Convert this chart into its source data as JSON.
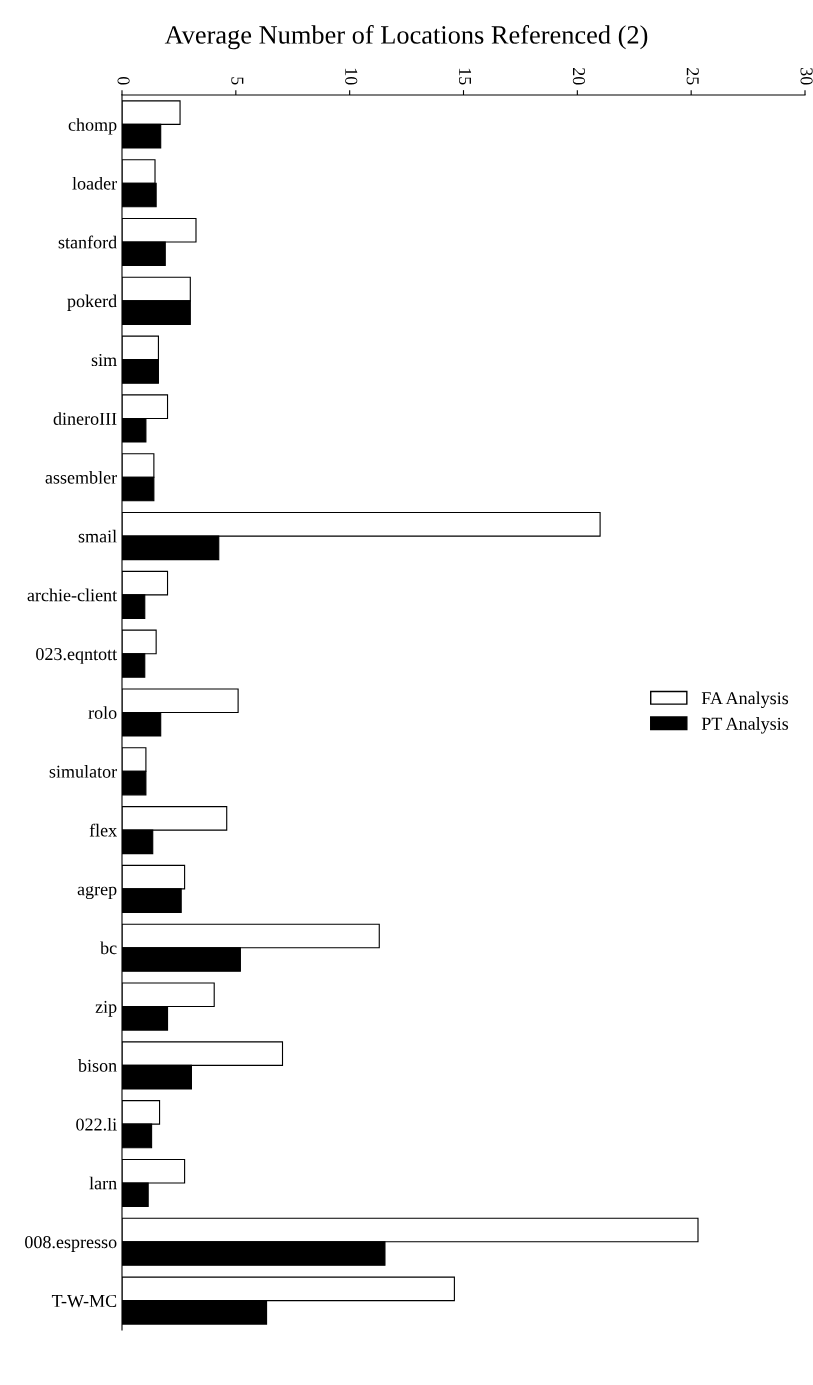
{
  "chart_data": {
    "type": "bar",
    "orientation": "horizontal",
    "title": "Average Number of Locations Referenced (2)",
    "categories": [
      "chomp",
      "loader",
      "stanford",
      "pokerd",
      "sim",
      "dineroIII",
      "assembler",
      "smail",
      "archie-client",
      "023.eqntott",
      "rolo",
      "simulator",
      "flex",
      "agrep",
      "bc",
      "zip",
      "bison",
      "022.li",
      "larn",
      "008.espresso",
      "T-W-MC"
    ],
    "series": [
      {
        "name": "FA Analysis",
        "color": "#ffffff",
        "values": [
          2.55,
          1.45,
          3.25,
          3.0,
          1.6,
          2.0,
          1.4,
          21.0,
          2.0,
          1.5,
          5.1,
          1.05,
          4.6,
          2.75,
          11.3,
          4.05,
          7.05,
          1.65,
          2.75,
          25.3,
          14.6
        ]
      },
      {
        "name": "PT Analysis",
        "color": "#000000",
        "values": [
          1.7,
          1.5,
          1.9,
          3.0,
          1.6,
          1.05,
          1.4,
          4.25,
          1.0,
          1.0,
          1.7,
          1.05,
          1.35,
          2.6,
          5.2,
          2.0,
          3.05,
          1.3,
          1.15,
          11.55,
          6.35
        ]
      }
    ],
    "xlim": [
      0,
      30
    ],
    "xticks": [
      0,
      5,
      10,
      15,
      20,
      25,
      30
    ],
    "grid": false,
    "legend": "right"
  }
}
